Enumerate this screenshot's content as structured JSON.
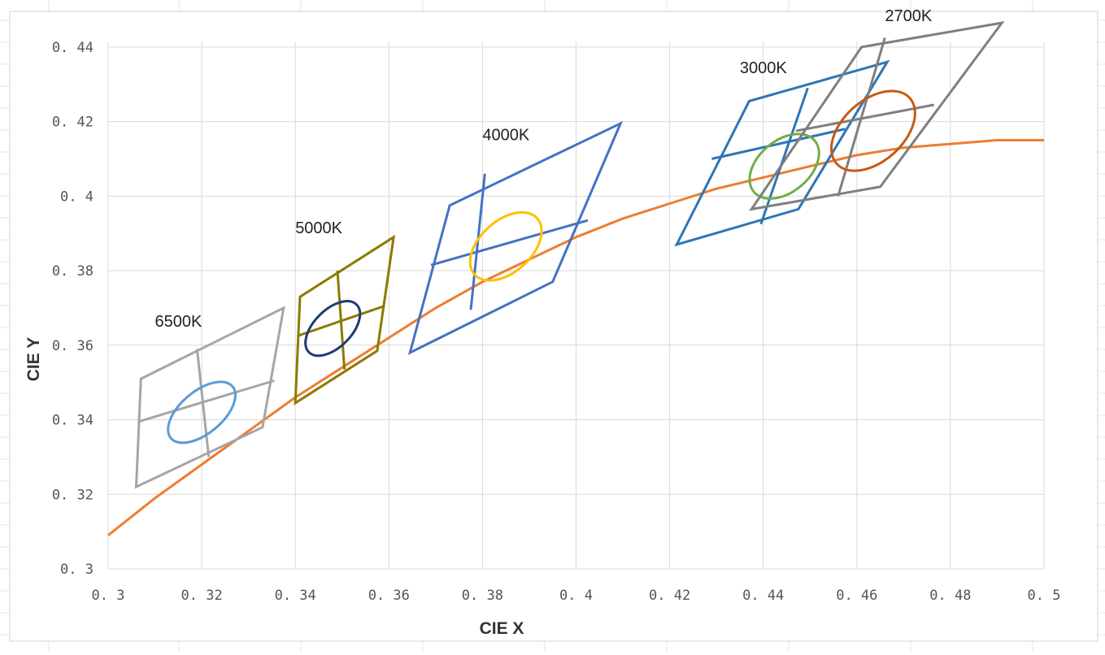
{
  "chart_data": {
    "type": "scatter",
    "title": "",
    "xlabel": "CIE X",
    "ylabel": "CIE Y",
    "xlim": [
      0.3,
      0.5
    ],
    "ylim": [
      0.3,
      0.44
    ],
    "x_ticks": [
      "0. 3",
      "0. 32",
      "0. 34",
      "0. 36",
      "0. 38",
      "0. 4",
      "0. 42",
      "0. 44",
      "0. 46",
      "0. 48",
      "0. 5"
    ],
    "x_tick_values": [
      0.3,
      0.32,
      0.34,
      0.36,
      0.38,
      0.4,
      0.42,
      0.44,
      0.46,
      0.48,
      0.5
    ],
    "y_ticks": [
      "0. 3",
      "0. 32",
      "0. 34",
      "0. 36",
      "0. 38",
      "0. 4",
      "0. 42",
      "0. 44"
    ],
    "y_tick_values": [
      0.3,
      0.32,
      0.34,
      0.36,
      0.38,
      0.4,
      0.42,
      0.44
    ],
    "grid": true,
    "legend": "none",
    "planckian_locus": {
      "color": "#ED7D31",
      "points": [
        [
          0.3,
          0.309
        ],
        [
          0.31,
          0.319
        ],
        [
          0.32,
          0.328
        ],
        [
          0.33,
          0.337
        ],
        [
          0.34,
          0.346
        ],
        [
          0.35,
          0.354
        ],
        [
          0.36,
          0.362
        ],
        [
          0.37,
          0.37
        ],
        [
          0.38,
          0.377
        ],
        [
          0.39,
          0.383
        ],
        [
          0.4,
          0.389
        ],
        [
          0.41,
          0.394
        ],
        [
          0.42,
          0.398
        ],
        [
          0.43,
          0.402
        ],
        [
          0.44,
          0.405
        ],
        [
          0.45,
          0.408
        ],
        [
          0.46,
          0.411
        ],
        [
          0.47,
          0.413
        ],
        [
          0.48,
          0.414
        ],
        [
          0.49,
          0.415
        ],
        [
          0.5,
          0.415
        ]
      ]
    },
    "cct_regions": [
      {
        "label": "6500K",
        "label_pos": [
          0.31,
          0.365
        ],
        "quad_color": "#A5A5A5",
        "ellipse_color": "#5B9BD5",
        "quad": [
          [
            0.306,
            0.322
          ],
          [
            0.307,
            0.351
          ],
          [
            0.3375,
            0.37
          ],
          [
            0.333,
            0.338
          ]
        ],
        "divider_1": [
          [
            0.3065,
            0.3395
          ],
          [
            0.3355,
            0.3505
          ]
        ],
        "divider_2": [
          [
            0.319,
            0.359
          ],
          [
            0.3215,
            0.33
          ]
        ],
        "ellipse": {
          "center": [
            0.32,
            0.342
          ],
          "semi_major": 0.0086,
          "semi_minor": 0.0045,
          "angle_deg": 40,
          "color": "#5B9BD5"
        }
      },
      {
        "label": "5000K",
        "label_pos": [
          0.34,
          0.39
        ],
        "quad_color": "#8C7A00",
        "ellipse_color": "#1F3B73",
        "quad": [
          [
            0.34,
            0.3445
          ],
          [
            0.341,
            0.373
          ],
          [
            0.361,
            0.389
          ],
          [
            0.3575,
            0.3585
          ]
        ],
        "divider_1": [
          [
            0.3405,
            0.3625
          ],
          [
            0.359,
            0.3705
          ]
        ],
        "divider_2": [
          [
            0.349,
            0.38
          ],
          [
            0.3505,
            0.3535
          ]
        ],
        "ellipse": {
          "center": [
            0.348,
            0.3645
          ],
          "semi_major": 0.0072,
          "semi_minor": 0.004,
          "angle_deg": 45,
          "color": "#1F3B73"
        }
      },
      {
        "label": "4000K",
        "label_pos": [
          0.38,
          0.415
        ],
        "quad_color": "#4472C4",
        "ellipse_color": "#FFC000",
        "quad": [
          [
            0.3645,
            0.358
          ],
          [
            0.373,
            0.3975
          ],
          [
            0.4095,
            0.4195
          ],
          [
            0.395,
            0.377
          ]
        ],
        "divider_1": [
          [
            0.369,
            0.3815
          ],
          [
            0.4025,
            0.3935
          ]
        ],
        "divider_2": [
          [
            0.3805,
            0.406
          ],
          [
            0.3775,
            0.3695
          ]
        ],
        "ellipse": {
          "center": [
            0.385,
            0.3865
          ],
          "semi_major": 0.009,
          "semi_minor": 0.0055,
          "angle_deg": 42,
          "color": "#FFC000"
        }
      },
      {
        "label": "3000K",
        "label_pos": [
          0.435,
          0.433
        ],
        "quad_color": "#2E75B6",
        "ellipse_color": "#70AD47",
        "quad": [
          [
            0.4215,
            0.387
          ],
          [
            0.437,
            0.4255
          ],
          [
            0.4665,
            0.436
          ],
          [
            0.4475,
            0.3965
          ]
        ],
        "divider_1": [
          [
            0.429,
            0.41
          ],
          [
            0.4575,
            0.418
          ]
        ],
        "divider_2": [
          [
            0.4495,
            0.429
          ],
          [
            0.4395,
            0.3925
          ]
        ],
        "ellipse": {
          "center": [
            0.4445,
            0.408
          ],
          "semi_major": 0.0085,
          "semi_minor": 0.0055,
          "angle_deg": 40,
          "color": "#70AD47"
        }
      },
      {
        "label": "2700K",
        "label_pos": [
          0.466,
          0.447
        ],
        "quad_color": "#7F7F7F",
        "ellipse_color": "#C55A11",
        "quad": [
          [
            0.4375,
            0.3965
          ],
          [
            0.461,
            0.44
          ],
          [
            0.491,
            0.4465
          ],
          [
            0.465,
            0.4025
          ]
        ],
        "divider_1": [
          [
            0.447,
            0.4175
          ],
          [
            0.4765,
            0.4245
          ]
        ],
        "divider_2": [
          [
            0.466,
            0.4425
          ],
          [
            0.456,
            0.4
          ]
        ],
        "ellipse": {
          "center": [
            0.4635,
            0.4175
          ],
          "semi_major": 0.0105,
          "semi_minor": 0.0065,
          "angle_deg": 42,
          "color": "#C55A11"
        }
      }
    ]
  }
}
